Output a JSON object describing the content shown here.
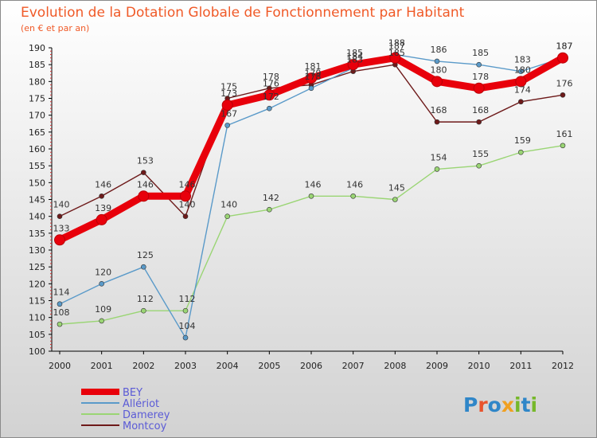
{
  "chart_data": {
    "type": "line",
    "title": "Evolution de la Dotation Globale de Fonctionnement par Habitant",
    "subtitle": "(en € et par an)",
    "categories": [
      "2000",
      "2001",
      "2002",
      "2003",
      "2004",
      "2005",
      "2006",
      "2007",
      "2008",
      "2009",
      "2010",
      "2011",
      "2012"
    ],
    "ylim": [
      100,
      190
    ],
    "yticks": [
      100,
      105,
      110,
      115,
      120,
      125,
      130,
      135,
      140,
      145,
      150,
      155,
      160,
      165,
      170,
      175,
      180,
      185,
      190
    ],
    "series": [
      {
        "name": "BEY",
        "color": "#e8000b",
        "values": [
          133,
          139,
          146,
          146,
          173,
          176,
          181,
          185,
          187,
          180,
          178,
          180,
          187
        ]
      },
      {
        "name": "Allériot",
        "color": "#5a9ac9",
        "values": [
          114,
          120,
          125,
          104,
          167,
          172,
          178,
          184,
          188,
          186,
          185,
          183,
          187
        ]
      },
      {
        "name": "Damerey",
        "color": "#9ad574",
        "values": [
          108,
          109,
          112,
          112,
          140,
          142,
          146,
          146,
          145,
          154,
          155,
          159,
          161
        ]
      },
      {
        "name": "Montcoy",
        "color": "#6e1a1a",
        "values": [
          140,
          146,
          153,
          140,
          175,
          178,
          179,
          183,
          185,
          168,
          168,
          174,
          176
        ]
      }
    ],
    "legend_position": "bottom-left",
    "grid": false
  },
  "logo": {
    "text": "Proxiti"
  }
}
